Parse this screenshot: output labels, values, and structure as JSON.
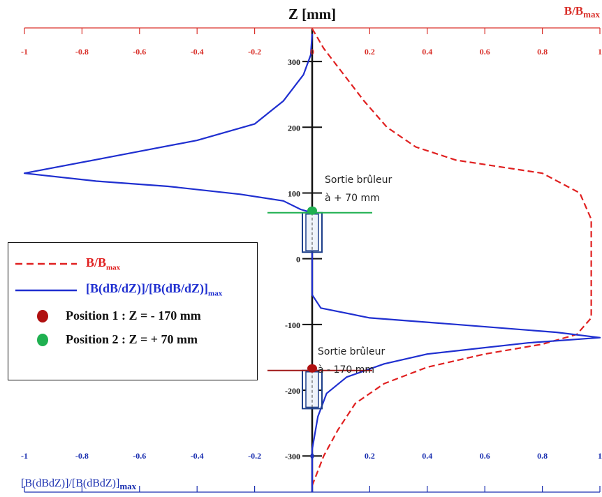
{
  "chart_data": {
    "type": "line",
    "title": "",
    "z_axis": {
      "label": "Z [mm]",
      "ticks": [
        300,
        200,
        100,
        0,
        -100,
        -200,
        -300
      ],
      "range": [
        -355,
        350
      ]
    },
    "top_axis": {
      "label_main": "B/B",
      "label_sub": "max",
      "range": [
        -1,
        1
      ],
      "ticks": [
        "-1",
        "-0.8",
        "-0.6",
        "-0.4",
        "-0.2",
        "0",
        "0.2",
        "0.4",
        "0.6",
        "0.8",
        "1"
      ]
    },
    "bottom_axis": {
      "label_main": "[B(dBdZ)]/[B(dBdZ)]",
      "label_sub": "max",
      "range": [
        -1,
        1
      ],
      "ticks": [
        "-1",
        "-0.8",
        "-0.6",
        "-0.4",
        "-0.2",
        "0",
        "0.2",
        "0.4",
        "0.6",
        "0.8",
        "1"
      ]
    },
    "series": [
      {
        "key": "b_ratio",
        "color": "#e02020",
        "style": "dashed",
        "points": [
          [
            0,
            350
          ],
          [
            0.04,
            320
          ],
          [
            0.11,
            280
          ],
          [
            0.18,
            240
          ],
          [
            0.26,
            200
          ],
          [
            0.36,
            170
          ],
          [
            0.5,
            150
          ],
          [
            0.65,
            140
          ],
          [
            0.8,
            130
          ],
          [
            0.93,
            100
          ],
          [
            0.97,
            60
          ],
          [
            0.97,
            0
          ],
          [
            0.97,
            -50
          ],
          [
            0.97,
            -90
          ],
          [
            0.92,
            -115
          ],
          [
            0.8,
            -130
          ],
          [
            0.6,
            -145
          ],
          [
            0.4,
            -165
          ],
          [
            0.25,
            -190
          ],
          [
            0.15,
            -220
          ],
          [
            0.09,
            -260
          ],
          [
            0.04,
            -300
          ],
          [
            0,
            -345
          ]
        ]
      },
      {
        "key": "gradient_ratio",
        "color": "#1f2fd0",
        "style": "solid",
        "points": [
          [
            0,
            342
          ],
          [
            -0.005,
            310
          ],
          [
            -0.03,
            280
          ],
          [
            -0.1,
            240
          ],
          [
            -0.2,
            205
          ],
          [
            -0.4,
            180
          ],
          [
            -0.7,
            155
          ],
          [
            -1,
            130
          ],
          [
            -0.75,
            118
          ],
          [
            -0.5,
            110
          ],
          [
            -0.25,
            98
          ],
          [
            -0.1,
            88
          ],
          [
            -0.04,
            75
          ],
          [
            0,
            70
          ],
          [
            0,
            0
          ],
          [
            0,
            -55
          ],
          [
            0.03,
            -75
          ],
          [
            0.2,
            -90
          ],
          [
            0.5,
            -100
          ],
          [
            0.85,
            -112
          ],
          [
            1,
            -120
          ],
          [
            0.75,
            -128
          ],
          [
            0.4,
            -145
          ],
          [
            0.25,
            -160
          ],
          [
            0.12,
            -180
          ],
          [
            0.05,
            -205
          ],
          [
            0.02,
            -240
          ],
          [
            0,
            -290
          ],
          [
            0,
            -355
          ]
        ]
      }
    ],
    "markers": [
      {
        "name": "Position 1",
        "z": -170,
        "color": "#b01010"
      },
      {
        "name": "Position 2",
        "z": 70,
        "color": "#1fb050"
      }
    ],
    "annotations": [
      {
        "lines": [
          "Sortie brûleur",
          "à + 70 mm"
        ]
      },
      {
        "lines": [
          "Sortie brûleur",
          "à  - 170 mm"
        ]
      }
    ],
    "legend": {
      "placement": "left",
      "items": [
        {
          "main": "B/B",
          "sub": "max",
          "color": "#e02020",
          "kind": "dashed-line"
        },
        {
          "main": "[B(dB/dZ)]/[B(dB/dZ)]",
          "sub": "max",
          "color": "#1f2fd0",
          "kind": "solid-line"
        },
        {
          "text": "Position 1 : Z = - 170 mm",
          "color": "#b01010",
          "kind": "dot"
        },
        {
          "text": "Position 2 : Z = + 70 mm",
          "color": "#1fb050",
          "kind": "dot"
        }
      ]
    }
  }
}
